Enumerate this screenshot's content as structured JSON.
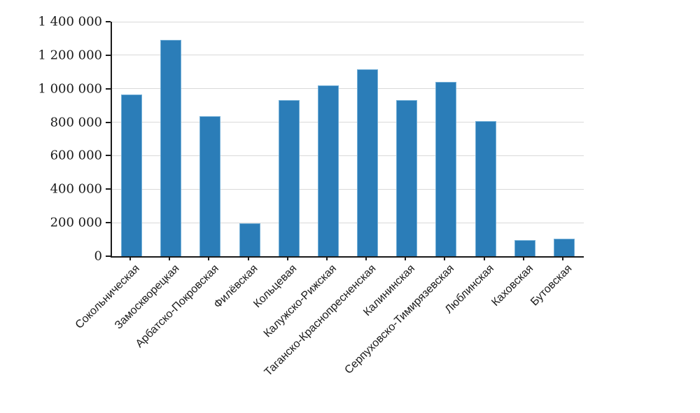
{
  "chart_data": {
    "type": "bar",
    "title": "",
    "xlabel": "",
    "ylabel": "",
    "legend": "none",
    "grid": "horizontal",
    "categories": [
      "Сокольническая",
      "Замоскворецкая",
      "Арбатско-Покровская",
      "Филёвская",
      "Кольцевая",
      "Калужско-Рижская",
      "Таганско-Краснопресненская",
      "Калининская",
      "Серпуховско-Тимирязевская",
      "Люблинская",
      "Каховская",
      "Бутовская"
    ],
    "values": [
      965000,
      1290000,
      835000,
      195000,
      930000,
      1020000,
      1115000,
      930000,
      1040000,
      805000,
      95000,
      105000
    ],
    "ylim": [
      0,
      1400000
    ],
    "ytick_step": 200000,
    "ytick_labels": [
      "0",
      "200 000",
      "400 000",
      "600 000",
      "800 000",
      "1 000 000",
      "1 200 000",
      "1 400 000"
    ],
    "colors": {
      "bar_fill": "#2b7db8",
      "bar_edge": "#74b0d8",
      "gridline": "#d9d9d9",
      "axis": "#1a1a1a",
      "background": "#ffffff"
    }
  }
}
